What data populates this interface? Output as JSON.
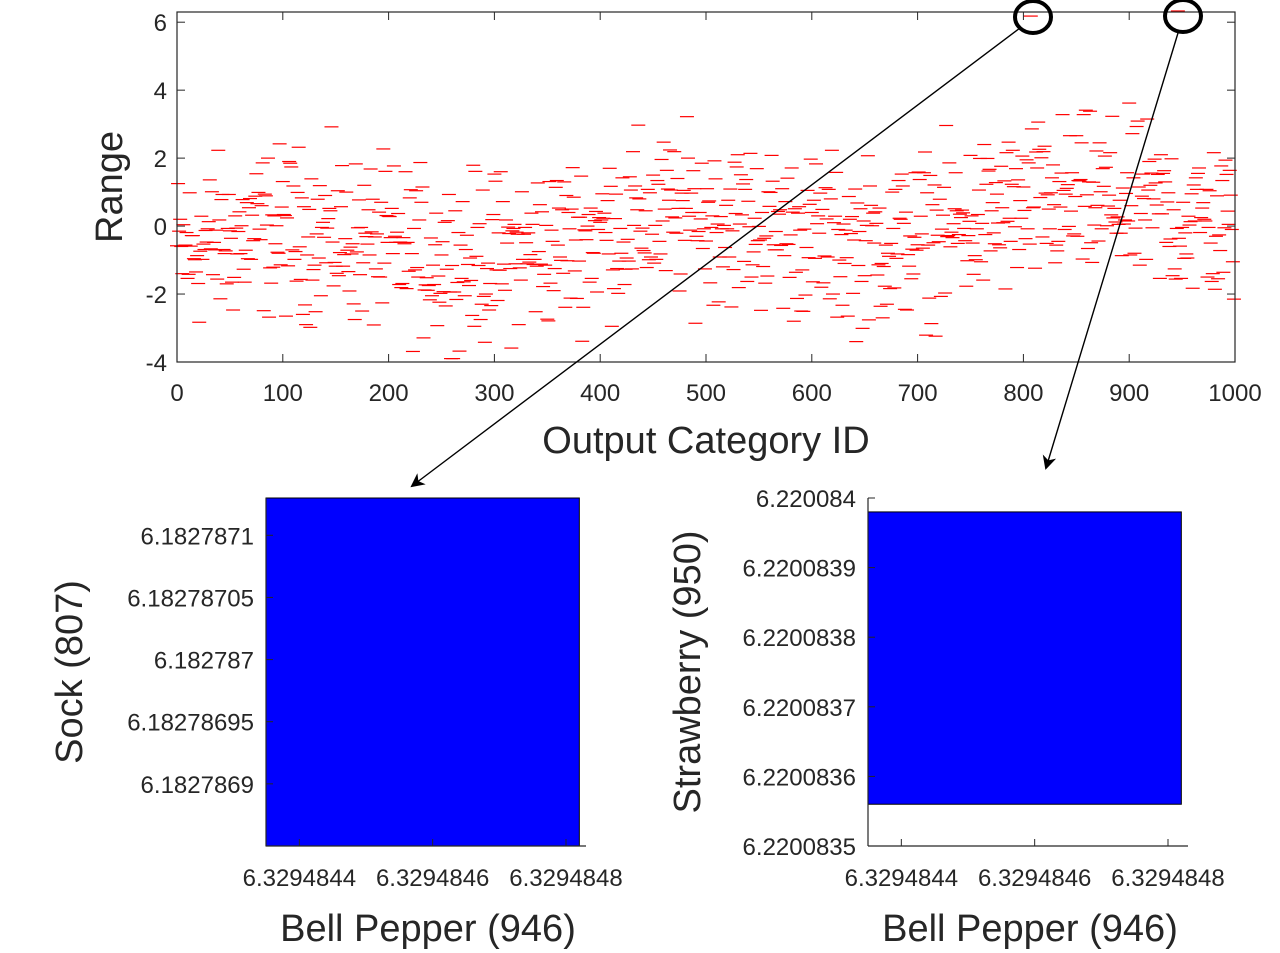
{
  "chart_data": [
    {
      "type": "scatter",
      "marker": "horizontal-dash",
      "color": "#ff0000",
      "xlabel": "Output Category ID",
      "ylabel": "Range",
      "xlim": [
        0,
        1000
      ],
      "ylim": [
        -4,
        6.3
      ],
      "xticks": [
        "0",
        "100",
        "200",
        "300",
        "400",
        "500",
        "600",
        "700",
        "800",
        "900",
        "1000"
      ],
      "yticks": [
        "-4",
        "-2",
        "0",
        "2",
        "4",
        "6"
      ],
      "box": true,
      "grid": false,
      "highlighted_points": [
        {
          "x": 807,
          "y": 6.18
        },
        {
          "x": 946,
          "y": 6.33
        }
      ],
      "points_x": [],
      "points_y": []
    },
    {
      "type": "area",
      "color": "#0000ff",
      "xlabel": "Bell Pepper (946)",
      "ylabel": "Sock (807)",
      "xticks": [
        "6.3294844",
        "6.3294846",
        "6.3294848"
      ],
      "yticks": [
        "6.1827869",
        "6.18278695",
        "6.182787",
        "6.18278705",
        "6.1827871"
      ],
      "xlim": [
        6.32948435,
        6.32948483
      ],
      "ylim": [
        6.18278685,
        6.18278713
      ],
      "rect": {
        "x0": 6.32948435,
        "x1": 6.32948482,
        "y0": 6.18278685,
        "y1": 6.18278713
      }
    },
    {
      "type": "area",
      "color": "#0000ff",
      "xlabel": "Bell Pepper (946)",
      "ylabel": "Strawberry (950)",
      "xticks": [
        "6.3294844",
        "6.3294846",
        "6.3294848"
      ],
      "yticks": [
        "6.2200835",
        "6.2200836",
        "6.2200837",
        "6.2200838",
        "6.2200839",
        "6.220084"
      ],
      "xlim": [
        6.32948435,
        6.32948483
      ],
      "ylim": [
        6.2200835,
        6.220084
      ],
      "rect": {
        "x0": 6.32948435,
        "x1": 6.32948482,
        "y0": 6.22008356,
        "y1": 6.22008398
      }
    }
  ]
}
